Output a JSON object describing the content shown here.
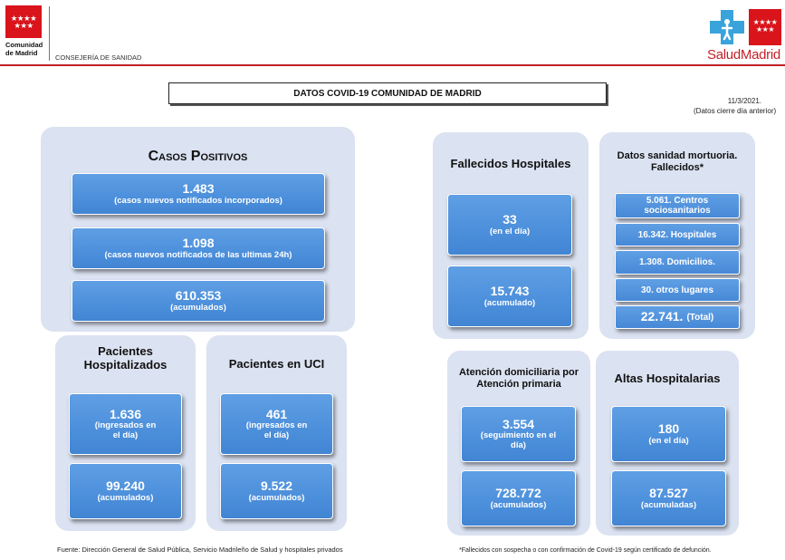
{
  "header": {
    "org_line1": "Comunidad",
    "org_line2": "de Madrid",
    "department": "CONSEJERÍA DE SANIDAD",
    "brand_salud": "Salud",
    "brand_madrid": "Madrid",
    "brand_color": "#c42027"
  },
  "title": "DATOS COVID-19 COMUNIDAD DE MADRID",
  "date": "11/3/2021.",
  "date_note": "(Datos cierre día anterior)",
  "casos": {
    "title": "Casos Positivos",
    "items": [
      {
        "value": "1.483",
        "label": "(casos nuevos notificados incorporados)"
      },
      {
        "value": "1.098",
        "label": "(casos nuevos notificados de las ultimas 24h)"
      },
      {
        "value": "610.353",
        "label": "(acumulados)"
      }
    ]
  },
  "hospitalizados": {
    "title_line1": "Pacientes",
    "title_line2": "Hospitalizados",
    "items": [
      {
        "value": "1.636",
        "label1": "(ingresados en",
        "label2": "el día)"
      },
      {
        "value": "99.240",
        "label1": "(acumulados)"
      }
    ]
  },
  "uci": {
    "title": "Pacientes en UCI",
    "items": [
      {
        "value": "461",
        "label1": "(ingresados en",
        "label2": "el día)"
      },
      {
        "value": "9.522",
        "label1": "(acumulados)"
      }
    ]
  },
  "fallecidos": {
    "title": "Fallecidos Hospitales",
    "items": [
      {
        "value": "33",
        "label": "(en el día)"
      },
      {
        "value": "15.743",
        "label": "(acumulado)"
      }
    ]
  },
  "mortuoria": {
    "title_line1": "Datos sanidad mortuoria.",
    "title_line2": "Fallecidos*",
    "items": [
      {
        "line1": "5.061. Centros",
        "line2": "sociosanitarios"
      },
      {
        "line1": "16.342. Hospitales"
      },
      {
        "line1": "1.308. Domicilios."
      },
      {
        "line1": "30. otros lugares"
      }
    ],
    "total_value": "22.741.",
    "total_label": "(Total)"
  },
  "domiciliaria": {
    "title_line1": "Atención domiciliaria por",
    "title_line2": "Atención primaria",
    "items": [
      {
        "value": "3.554",
        "label1": "(seguimiento en el",
        "label2": "día)"
      },
      {
        "value": "728.772",
        "label1": "(acumulados)"
      }
    ]
  },
  "altas": {
    "title": "Altas Hospitalarias",
    "items": [
      {
        "value": "180",
        "label": "(en el día)"
      },
      {
        "value": "87.527",
        "label": "(acumuladas)"
      }
    ]
  },
  "footer": {
    "source": "Fuente: Dirección General de Salud Pública, Servicio Madrileño de Salud y hospitales privados",
    "note": "*Fallecidos con sospecha o con confirmación de Covid-19 según certificado de defunción."
  }
}
